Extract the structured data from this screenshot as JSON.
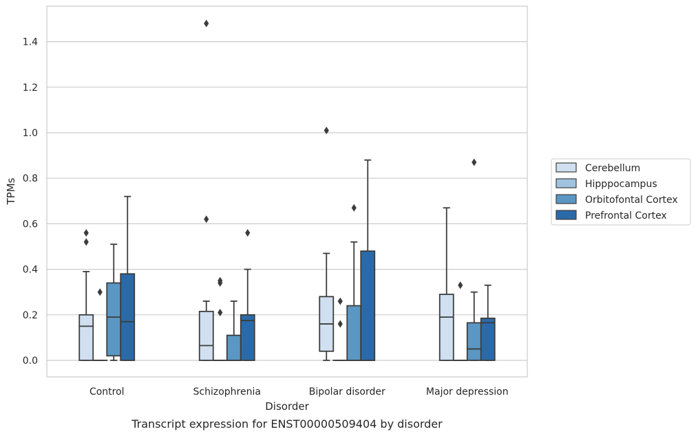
{
  "chart_data": {
    "type": "box",
    "title": "",
    "caption": "Transcript expression for ENST00000509404 by disorder",
    "xlabel": "Disorder",
    "ylabel": "TPMs",
    "ylim": [
      -0.07,
      1.56
    ],
    "yticks": [
      0.0,
      0.2,
      0.4,
      0.6,
      0.8,
      1.0,
      1.2,
      1.4
    ],
    "ytick_labels": [
      "0.0",
      "0.2",
      "0.4",
      "0.6",
      "0.8",
      "1.0",
      "1.2",
      "1.4"
    ],
    "grid": "horizontal",
    "legend_position": "right",
    "categories": [
      "Control",
      "Schizophrenia",
      "Bipolar disorder",
      "Major depression"
    ],
    "series": [
      {
        "name": "Cerebellum",
        "color": "#d0e0f0",
        "boxes": [
          {
            "whislo": 0.0,
            "q1": 0.0,
            "med": 0.15,
            "q3": 0.2,
            "whishi": 0.39,
            "fliers": [
              0.52,
              0.56
            ]
          },
          {
            "whislo": 0.0,
            "q1": 0.0,
            "med": 0.065,
            "q3": 0.215,
            "whishi": 0.26,
            "fliers": [
              0.62,
              1.48
            ]
          },
          {
            "whislo": 0.0,
            "q1": 0.04,
            "med": 0.16,
            "q3": 0.28,
            "whishi": 0.47,
            "fliers": [
              1.01
            ]
          },
          {
            "whislo": 0.0,
            "q1": 0.0,
            "med": 0.19,
            "q3": 0.29,
            "whishi": 0.67,
            "fliers": []
          }
        ]
      },
      {
        "name": "Hipppocampus",
        "color": "#a0c4df",
        "boxes": [
          {
            "whislo": 0.0,
            "q1": 0.0,
            "med": 0.0,
            "q3": 0.0,
            "whishi": 0.0,
            "fliers": [
              0.3
            ]
          },
          {
            "whislo": 0.0,
            "q1": 0.0,
            "med": 0.0,
            "q3": 0.0,
            "whishi": 0.0,
            "fliers": [
              0.21,
              0.34,
              0.35
            ]
          },
          {
            "whislo": 0.0,
            "q1": 0.0,
            "med": 0.0,
            "q3": 0.0,
            "whishi": 0.0,
            "fliers": [
              0.16,
              0.26
            ]
          },
          {
            "whislo": 0.0,
            "q1": 0.0,
            "med": 0.0,
            "q3": 0.0,
            "whishi": 0.0,
            "fliers": [
              0.33
            ]
          }
        ]
      },
      {
        "name": "Orbitofontal Cortex",
        "color": "#5a97c4",
        "boxes": [
          {
            "whislo": 0.0,
            "q1": 0.02,
            "med": 0.19,
            "q3": 0.34,
            "whishi": 0.51,
            "fliers": []
          },
          {
            "whislo": 0.0,
            "q1": 0.0,
            "med": 0.0,
            "q3": 0.11,
            "whishi": 0.26,
            "fliers": []
          },
          {
            "whislo": 0.0,
            "q1": 0.0,
            "med": 0.0,
            "q3": 0.24,
            "whishi": 0.52,
            "fliers": [
              0.67
            ]
          },
          {
            "whislo": 0.0,
            "q1": 0.0,
            "med": 0.05,
            "q3": 0.165,
            "whishi": 0.3,
            "fliers": [
              0.87
            ]
          }
        ]
      },
      {
        "name": "Prefrontal Cortex",
        "color": "#2b6aa8",
        "boxes": [
          {
            "whislo": 0.0,
            "q1": 0.0,
            "med": 0.17,
            "q3": 0.38,
            "whishi": 0.72,
            "fliers": []
          },
          {
            "whislo": 0.0,
            "q1": 0.0,
            "med": 0.175,
            "q3": 0.2,
            "whishi": 0.4,
            "fliers": [
              0.56
            ]
          },
          {
            "whislo": 0.0,
            "q1": 0.0,
            "med": 0.0,
            "q3": 0.48,
            "whishi": 0.88,
            "fliers": []
          },
          {
            "whislo": 0.0,
            "q1": 0.0,
            "med": 0.165,
            "q3": 0.185,
            "whishi": 0.33,
            "fliers": []
          }
        ]
      }
    ]
  }
}
